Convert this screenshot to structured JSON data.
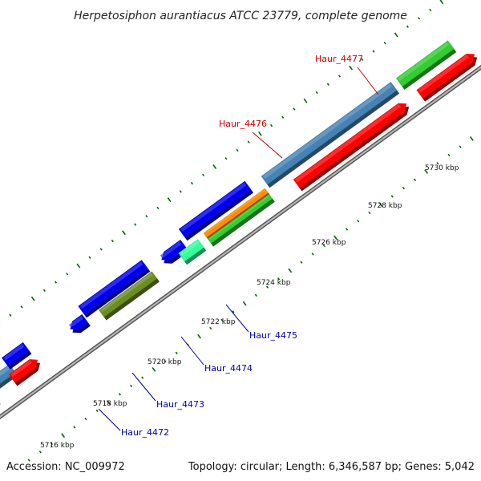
{
  "title": "Herpetosiphon aurantiacus ATCC 23779, complete genome",
  "footer": {
    "accession": "Accession: NC_009972",
    "summary": "Topology: circular; Length: 6,346,587 bp; Genes: 5,042"
  },
  "scale_labels": [
    "5716 kbp",
    "5718 kbp",
    "5720 kbp",
    "5722 kbp",
    "5724 kbp",
    "5726 kbp",
    "5728 kbp",
    "5730 kbp"
  ],
  "gene_labels": [
    "Haur_4472",
    "Haur_4473",
    "Haur_4474",
    "Haur_4475",
    "Haur_4476",
    "Haur_4477"
  ],
  "colors": {
    "blue": "#0000ee",
    "steelblue": "#4682b4",
    "red": "#ff0000",
    "green": "#33cc33",
    "olive": "#6b8e23",
    "orange": "#ff8c00",
    "aquamarine": "#33ff99",
    "label_red": "#cc0000",
    "label_blue": "#0000aa",
    "backbone": "#777777",
    "tick": "#006600"
  }
}
